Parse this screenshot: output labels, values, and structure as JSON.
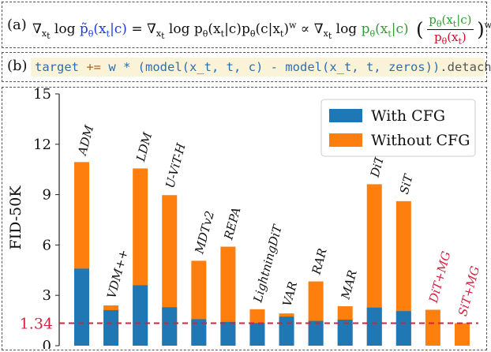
{
  "panel_a": {
    "tag": "(a)",
    "lhs": "∇xt log p̃θ(xt|c)",
    "mid": "= ∇xt log pθ(xt|c)pθ(c|xt)^w ∝ ∇xt log",
    "green": "pθ(xt|c)",
    "frac_num": "pθ(xt|c)",
    "frac_den": "pθ(xt)",
    "exp": "w"
  },
  "panel_b": {
    "tag": "(b)",
    "code_target": "target",
    "code_op": "+=",
    "code_body": "w * (model(x_t, t, c) - model(x_t, t, zeros))",
    "code_tail": ".detach()"
  },
  "chart_data": {
    "type": "bar",
    "ylabel": "FID-50K",
    "ylim": [
      0,
      15
    ],
    "yticks": [
      0,
      3,
      6,
      9,
      12,
      15
    ],
    "reference_line": {
      "value": 1.34,
      "label": "1.34",
      "color": "#d62040"
    },
    "colors": {
      "with_cfg": "#1f77b4",
      "without_cfg": "#ff7f0e",
      "highlight_label": "#d62040"
    },
    "legend": {
      "placement": "top-right",
      "entries": [
        "With CFG",
        "Without CFG"
      ]
    },
    "categories": [
      "ADM",
      "VDM++",
      "LDM",
      "U-ViT-H",
      "MDTv2",
      "REPA",
      "LightningDiT",
      "VAR",
      "RAR",
      "MAR",
      "DiT",
      "SiT",
      "DiT+MG",
      "SiT+MG"
    ],
    "series": [
      {
        "name": "With CFG",
        "values": [
          4.59,
          2.12,
          3.6,
          2.29,
          1.58,
          1.42,
          1.35,
          1.73,
          1.48,
          1.55,
          2.27,
          2.06,
          null,
          null
        ]
      },
      {
        "name": "Without CFG",
        "values": [
          10.94,
          2.4,
          10.56,
          8.97,
          5.06,
          5.9,
          2.17,
          1.92,
          3.83,
          2.35,
          9.62,
          8.61,
          2.14,
          1.34
        ]
      }
    ],
    "highlighted": [
      "DiT+MG",
      "SiT+MG"
    ]
  }
}
